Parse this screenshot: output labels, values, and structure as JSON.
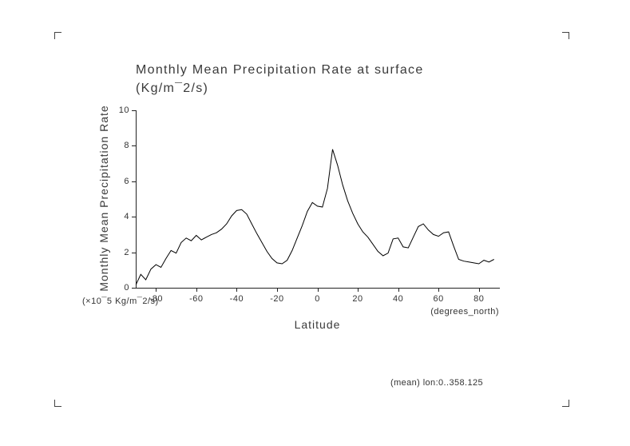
{
  "page": {
    "title_line1": "Monthly Mean Precipitation Rate at surface",
    "title_line2": "(Kg/m¯2/s)",
    "y_axis_title": "Monthly Mean Precipitation Rate",
    "x_axis_title": "Latitude",
    "y_units_note": "(×10¯5 Kg/m¯2/s)",
    "x_units_note": "(degrees_north)",
    "footer_note": "(mean) lon:0..358.125"
  },
  "chart_data": {
    "type": "line",
    "title": "Monthly Mean Precipitation Rate at surface (Kg/m¯2/s)",
    "xlabel": "Latitude (degrees_north)",
    "ylabel": "Monthly Mean Precipitation Rate (×10¯5 Kg/m¯2/s)",
    "xlim": [
      -90,
      90
    ],
    "ylim": [
      0,
      10
    ],
    "xticks": [
      -80,
      -60,
      -40,
      -20,
      0,
      20,
      40,
      60,
      80
    ],
    "yticks": [
      0,
      2,
      4,
      6,
      8,
      10
    ],
    "grid": false,
    "legend": "none",
    "line_color": "#000000",
    "x": [
      -90,
      -87.5,
      -85,
      -82.5,
      -80,
      -77.5,
      -75,
      -72.5,
      -70,
      -67.5,
      -65,
      -62.5,
      -60,
      -57.5,
      -55,
      -52.5,
      -50,
      -47.5,
      -45,
      -42.5,
      -40,
      -37.5,
      -35,
      -32.5,
      -30,
      -27.5,
      -25,
      -22.5,
      -20,
      -17.5,
      -15,
      -12.5,
      -10,
      -7.5,
      -5,
      -2.5,
      0,
      2.5,
      5,
      7.5,
      10,
      12.5,
      15,
      17.5,
      20,
      22.5,
      25,
      27.5,
      30,
      32.5,
      35,
      37.5,
      40,
      42.5,
      45,
      47.5,
      50,
      52.5,
      55,
      57.5,
      60,
      62.5,
      65,
      67.5,
      70,
      72.5,
      75,
      77.5,
      80,
      82.5,
      85,
      87.5
    ],
    "y": [
      0.15,
      0.75,
      0.45,
      1.05,
      1.3,
      1.15,
      1.65,
      2.1,
      1.95,
      2.55,
      2.8,
      2.65,
      2.95,
      2.7,
      2.85,
      3.0,
      3.1,
      3.3,
      3.6,
      4.05,
      4.35,
      4.4,
      4.15,
      3.6,
      3.05,
      2.55,
      2.05,
      1.65,
      1.4,
      1.35,
      1.55,
      2.1,
      2.8,
      3.5,
      4.3,
      4.8,
      4.6,
      4.55,
      5.6,
      7.8,
      6.9,
      5.8,
      4.9,
      4.2,
      3.6,
      3.15,
      2.85,
      2.45,
      2.05,
      1.8,
      1.95,
      2.75,
      2.8,
      2.3,
      2.25,
      2.85,
      3.45,
      3.6,
      3.25,
      3.0,
      2.9,
      3.1,
      3.15,
      2.35,
      1.6,
      1.5,
      1.45,
      1.4,
      1.35,
      1.55,
      1.45,
      1.6
    ]
  }
}
